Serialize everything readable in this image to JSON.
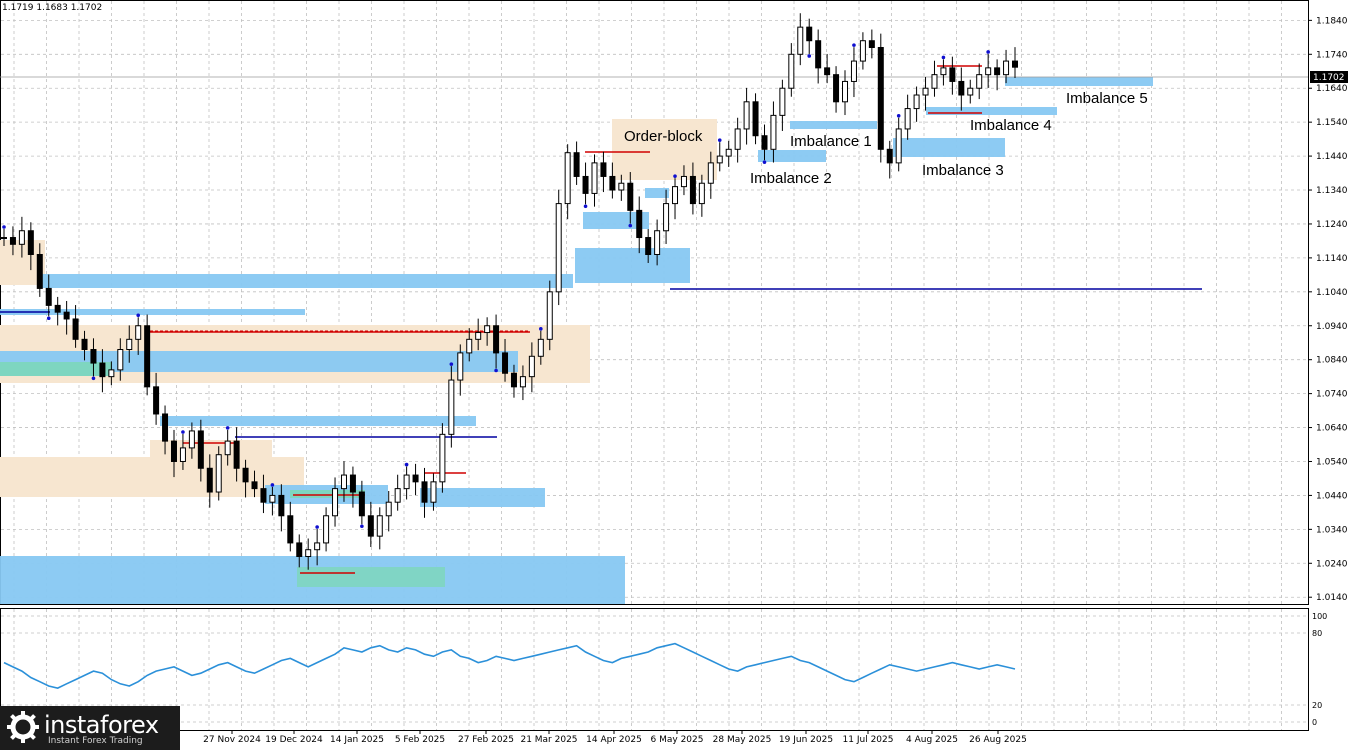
{
  "header": {
    "ohlc": "1.1719 1.1683 1.1702"
  },
  "current_price": "1.1702",
  "colors": {
    "candle": "#000000",
    "grid": "#c0c0c0",
    "imbalance": "#87c8f2",
    "order_block": "#f7e6d0",
    "green_zone": "#7ed6c0",
    "level_blue": "#0000a0",
    "level_red": "#d00000",
    "fractal": "#1010d0",
    "rsi_line": "#2b90d9"
  },
  "labels": [
    {
      "id": "order-block",
      "text": "Order-block"
    },
    {
      "id": "imbalance-1",
      "text": "Imbalance 1"
    },
    {
      "id": "imbalance-2",
      "text": "Imbalance 2"
    },
    {
      "id": "imbalance-3",
      "text": "Imbalance 3"
    },
    {
      "id": "imbalance-4",
      "text": "Imbalance 4"
    },
    {
      "id": "imbalance-5",
      "text": "Imbalance 5"
    }
  ],
  "price_axis": [
    "1.1840",
    "1.1740",
    "1.1640",
    "1.1540",
    "1.1440",
    "1.1340",
    "1.1240",
    "1.1140",
    "1.1040",
    "1.0940",
    "1.0840",
    "1.0740",
    "1.0640",
    "1.0540",
    "1.0440",
    "1.0340",
    "1.0240",
    "1.0140"
  ],
  "rsi_axis": [
    "100",
    "80",
    "20",
    "0"
  ],
  "time_axis": [
    "27 Nov 2024",
    "19 Dec 2024",
    "14 Jan 2025",
    "5 Feb 2025",
    "27 Feb 2025",
    "21 Mar 2025",
    "14 Apr 2025",
    "6 May 2025",
    "28 May 2025",
    "19 Jun 2025",
    "11 Jul 2025",
    "4 Aug 2025",
    "26 Aug 2025"
  ],
  "brand": {
    "name": "instaforex",
    "tagline": "Instant Forex Trading"
  },
  "chart_data": {
    "type": "candlestick",
    "symbol_ohlc": "1.1719 1.1683 1.1702",
    "ylim": [
      1.012,
      1.19
    ],
    "closes": [
      1.12,
      1.118,
      1.122,
      1.115,
      1.105,
      1.1,
      1.098,
      1.096,
      1.09,
      1.087,
      1.083,
      1.079,
      1.081,
      1.087,
      1.09,
      1.094,
      1.076,
      1.068,
      1.06,
      1.054,
      1.058,
      1.063,
      1.052,
      1.045,
      1.056,
      1.06,
      1.052,
      1.048,
      1.046,
      1.042,
      1.044,
      1.038,
      1.03,
      1.026,
      1.028,
      1.03,
      1.038,
      1.046,
      1.05,
      1.045,
      1.038,
      1.032,
      1.038,
      1.042,
      1.046,
      1.05,
      1.048,
      1.042,
      1.048,
      1.062,
      1.078,
      1.086,
      1.09,
      1.092,
      1.094,
      1.086,
      1.08,
      1.076,
      1.079,
      1.085,
      1.09,
      1.104,
      1.13,
      1.145,
      1.138,
      1.133,
      1.142,
      1.138,
      1.134,
      1.136,
      1.128,
      1.12,
      1.115,
      1.122,
      1.13,
      1.135,
      1.138,
      1.13,
      1.136,
      1.142,
      1.144,
      1.146,
      1.152,
      1.16,
      1.15,
      1.146,
      1.156,
      1.164,
      1.174,
      1.182,
      1.178,
      1.17,
      1.168,
      1.16,
      1.166,
      1.172,
      1.178,
      1.176,
      1.146,
      1.142,
      1.152,
      1.158,
      1.162,
      1.164,
      1.168,
      1.17,
      1.166,
      1.162,
      1.164,
      1.168,
      1.17,
      1.168,
      1.172,
      1.1702
    ],
    "rsi": [
      56,
      52,
      48,
      42,
      38,
      34,
      32,
      36,
      40,
      44,
      48,
      46,
      40,
      36,
      34,
      38,
      44,
      48,
      50,
      52,
      48,
      44,
      46,
      50,
      54,
      56,
      52,
      48,
      46,
      50,
      54,
      58,
      60,
      56,
      52,
      56,
      60,
      64,
      70,
      68,
      66,
      70,
      72,
      68,
      66,
      70,
      68,
      64,
      62,
      66,
      68,
      62,
      60,
      56,
      58,
      62,
      60,
      58,
      60,
      62,
      64,
      66,
      68,
      70,
      72,
      66,
      62,
      58,
      56,
      60,
      62,
      64,
      66,
      70,
      72,
      74,
      70,
      66,
      62,
      58,
      54,
      50,
      48,
      52,
      54,
      56,
      58,
      60,
      62,
      58,
      56,
      52,
      48,
      44,
      40,
      38,
      42,
      46,
      50,
      54,
      52,
      50,
      48,
      50,
      52,
      54,
      56,
      54,
      52,
      50,
      52,
      54,
      52,
      50
    ]
  }
}
